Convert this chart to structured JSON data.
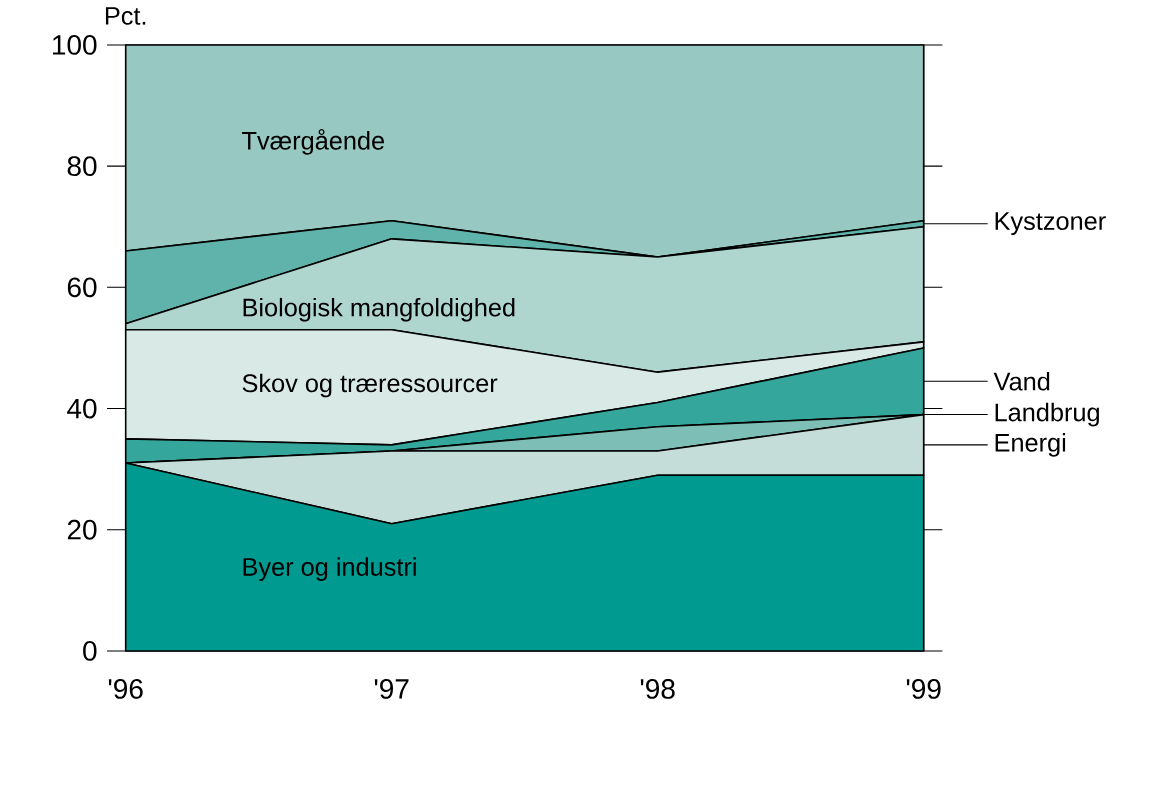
{
  "chart_data": {
    "type": "area",
    "stacked": true,
    "legend": "right",
    "ylabel": "Pct.",
    "categories": [
      "'96",
      "'97",
      "'98",
      "'99"
    ],
    "ylim": [
      0,
      100
    ],
    "yticks": [
      0,
      20,
      40,
      60,
      80,
      100
    ],
    "series": [
      {
        "name": "Byer og industri",
        "color": "#009a90",
        "values": [
          31,
          21,
          29,
          29
        ]
      },
      {
        "name": "Energi",
        "color": "#c5ddd9",
        "values": [
          0,
          12,
          4,
          10
        ]
      },
      {
        "name": "Landbrug",
        "color": "#7dbfb6",
        "values": [
          0,
          0,
          4,
          0
        ]
      },
      {
        "name": "Vand",
        "color": "#35a69c",
        "values": [
          4,
          1,
          4,
          11
        ]
      },
      {
        "name": "Skov og træressourcer",
        "color": "#d9e9e6",
        "values": [
          18,
          19,
          5,
          1
        ]
      },
      {
        "name": "Biologisk mangfoldighed",
        "color": "#afd5cf",
        "values": [
          1,
          15,
          19,
          19
        ]
      },
      {
        "name": "Kystzoner",
        "color": "#60b3aa",
        "values": [
          12,
          3,
          0,
          1
        ]
      },
      {
        "name": "Tværgående",
        "color": "#97c8c1",
        "values": [
          34,
          29,
          35,
          29
        ]
      }
    ]
  }
}
